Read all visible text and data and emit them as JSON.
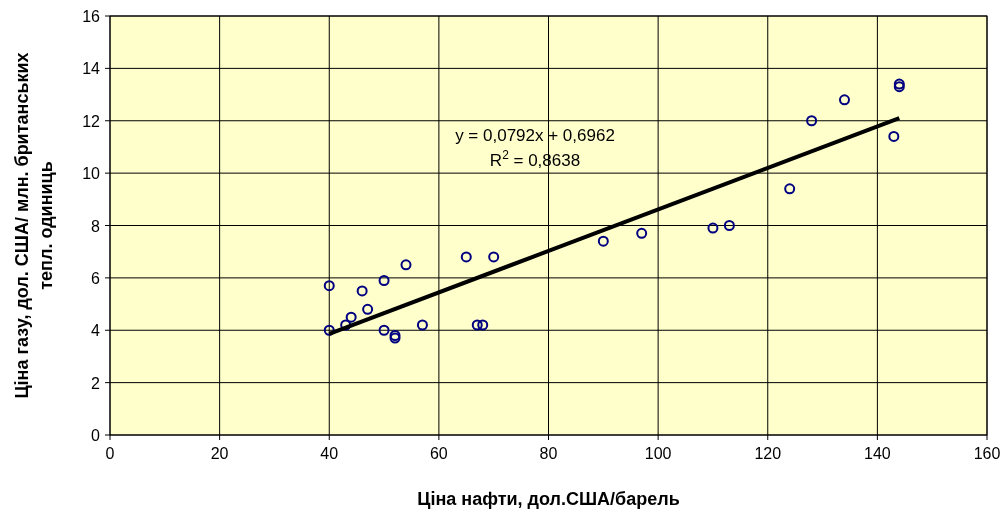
{
  "chart_data": {
    "type": "scatter",
    "xlabel": "Ціна нафти, дол.США/барель",
    "ylabel": "Ціна газу, дол. США/ млн. британських\nтепл. одиниць",
    "annotations": [
      "y = 0,0792x + 0,6962",
      "R$^{2}$ = 0,8638"
    ],
    "series": [
      {
        "color": "#000080",
        "marker": "circle",
        "x": [
          40,
          40,
          43,
          44,
          46,
          47,
          50,
          50,
          52,
          52,
          54,
          57,
          65,
          67,
          68,
          70,
          90,
          97,
          110,
          113,
          124,
          128,
          134,
          143,
          144,
          144
        ],
        "values": [
          5.7,
          4.0,
          4.2,
          4.5,
          5.5,
          4.8,
          5.9,
          4.0,
          3.8,
          3.7,
          6.5,
          4.2,
          6.8,
          4.2,
          4.2,
          6.8,
          7.4,
          7.7,
          7.9,
          8.0,
          9.4,
          12.0,
          12.8,
          11.4,
          13.4,
          13.3
        ]
      },
      {
        "type": "line",
        "color": "#000000",
        "line_style": "solid",
        "x": [
          40,
          144
        ],
        "values": [
          3.86,
          12.1
        ]
      }
    ],
    "xlim": [
      0,
      160
    ],
    "xticks": [
      0,
      20,
      40,
      60,
      80,
      100,
      120,
      140,
      160
    ],
    "ylim": [
      0,
      16
    ],
    "yticks": [
      0,
      2,
      4,
      6,
      8,
      10,
      12,
      14,
      16
    ],
    "grid": true
  }
}
